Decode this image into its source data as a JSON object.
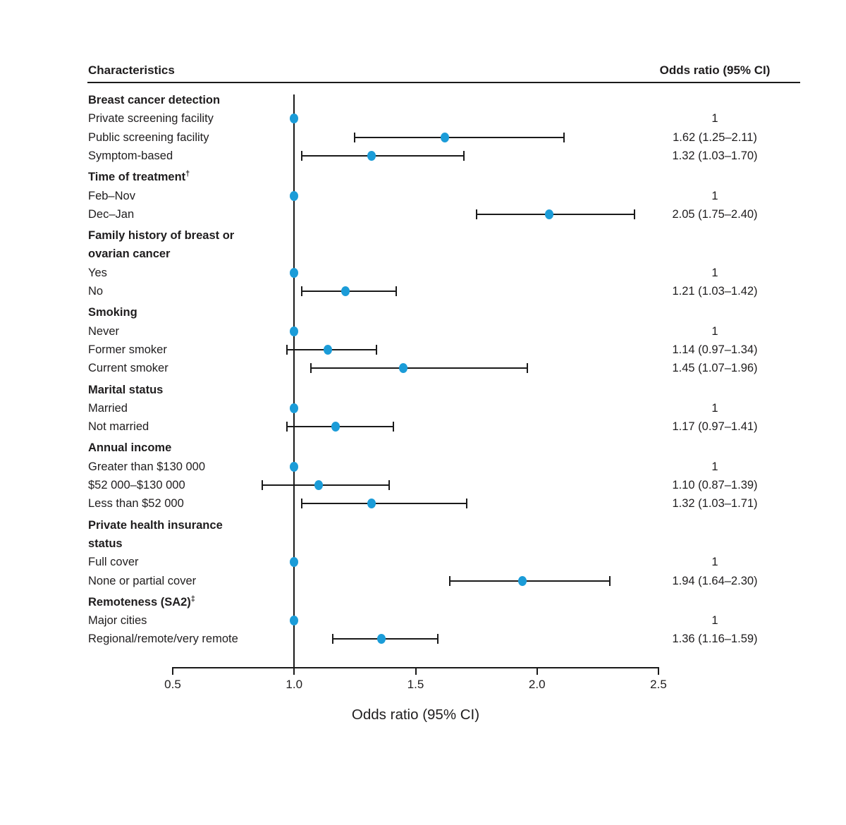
{
  "header": {
    "left": "Characteristics",
    "right": "Odds ratio (95% CI)"
  },
  "colors": {
    "point": "#1b9cd8",
    "line": "#1a1a1a",
    "text": "#1f1d1e"
  },
  "chart_data": {
    "type": "forest",
    "xlabel": "Odds ratio (95% CI)",
    "xlim": [
      0.5,
      2.5
    ],
    "x_ticks": [
      0.5,
      1.0,
      1.5,
      2.0,
      2.5
    ],
    "x_tick_labels": [
      "0.5",
      "1.0",
      "1.5",
      "2.0",
      "2.5"
    ],
    "reference_line": 1.0,
    "columns": {
      "left": "Characteristics",
      "right": "Odds ratio (95% CI)"
    },
    "rows": [
      {
        "type": "header",
        "label": "Breast cancer detection"
      },
      {
        "type": "item",
        "label": "Private screening facility",
        "or": 1.0,
        "ref": true,
        "value": "1"
      },
      {
        "type": "item",
        "label": "Public screening facility",
        "or": 1.62,
        "lo": 1.25,
        "hi": 2.11,
        "value": "1.62 (1.25–2.11)"
      },
      {
        "type": "item",
        "label": "Symptom-based",
        "or": 1.32,
        "lo": 1.03,
        "hi": 1.7,
        "value": "1.32 (1.03–1.70)"
      },
      {
        "type": "header",
        "label": "Time of treatment",
        "sup": "†"
      },
      {
        "type": "item",
        "label": "Feb–Nov",
        "or": 1.0,
        "ref": true,
        "value": "1"
      },
      {
        "type": "item",
        "label": "Dec–Jan",
        "or": 2.05,
        "lo": 1.75,
        "hi": 2.4,
        "value": "2.05 (1.75–2.40)"
      },
      {
        "type": "header",
        "label": "Family history of breast or",
        "line2": "ovarian cancer"
      },
      {
        "type": "item",
        "label": "Yes",
        "or": 1.0,
        "ref": true,
        "value": "1"
      },
      {
        "type": "item",
        "label": "No",
        "or": 1.21,
        "lo": 1.03,
        "hi": 1.42,
        "value": "1.21 (1.03–1.42)"
      },
      {
        "type": "header",
        "label": "Smoking"
      },
      {
        "type": "item",
        "label": "Never",
        "or": 1.0,
        "ref": true,
        "value": "1"
      },
      {
        "type": "item",
        "label": "Former smoker",
        "or": 1.14,
        "lo": 0.97,
        "hi": 1.34,
        "value": "1.14 (0.97–1.34)"
      },
      {
        "type": "item",
        "label": "Current smoker",
        "or": 1.45,
        "lo": 1.07,
        "hi": 1.96,
        "value": "1.45 (1.07–1.96)"
      },
      {
        "type": "header",
        "label": "Marital status"
      },
      {
        "type": "item",
        "label": "Married",
        "or": 1.0,
        "ref": true,
        "value": "1"
      },
      {
        "type": "item",
        "label": "Not married",
        "or": 1.17,
        "lo": 0.97,
        "hi": 1.41,
        "value": "1.17 (0.97–1.41)"
      },
      {
        "type": "header",
        "label": "Annual income"
      },
      {
        "type": "item",
        "label": "Greater than $130 000",
        "or": 1.0,
        "ref": true,
        "value": "1"
      },
      {
        "type": "item",
        "label": "$52 000–$130 000",
        "or": 1.1,
        "lo": 0.87,
        "hi": 1.39,
        "value": "1.10 (0.87–1.39)"
      },
      {
        "type": "item",
        "label": "Less than $52 000",
        "or": 1.32,
        "lo": 1.03,
        "hi": 1.71,
        "value": "1.32 (1.03–1.71)"
      },
      {
        "type": "header",
        "label": "Private health insurance",
        "line2": "status"
      },
      {
        "type": "item",
        "label": "Full cover",
        "or": 1.0,
        "ref": true,
        "value": "1"
      },
      {
        "type": "item",
        "label": "None or partial cover",
        "or": 1.94,
        "lo": 1.64,
        "hi": 2.3,
        "value": "1.94 (1.64–2.30)"
      },
      {
        "type": "header",
        "label": "Remoteness (SA2)",
        "sup": "‡"
      },
      {
        "type": "item",
        "label": "Major cities",
        "or": 1.0,
        "ref": true,
        "value": "1"
      },
      {
        "type": "item",
        "label": "Regional/remote/very remote",
        "or": 1.36,
        "lo": 1.16,
        "hi": 1.59,
        "value": "1.36 (1.16–1.59)"
      }
    ]
  }
}
